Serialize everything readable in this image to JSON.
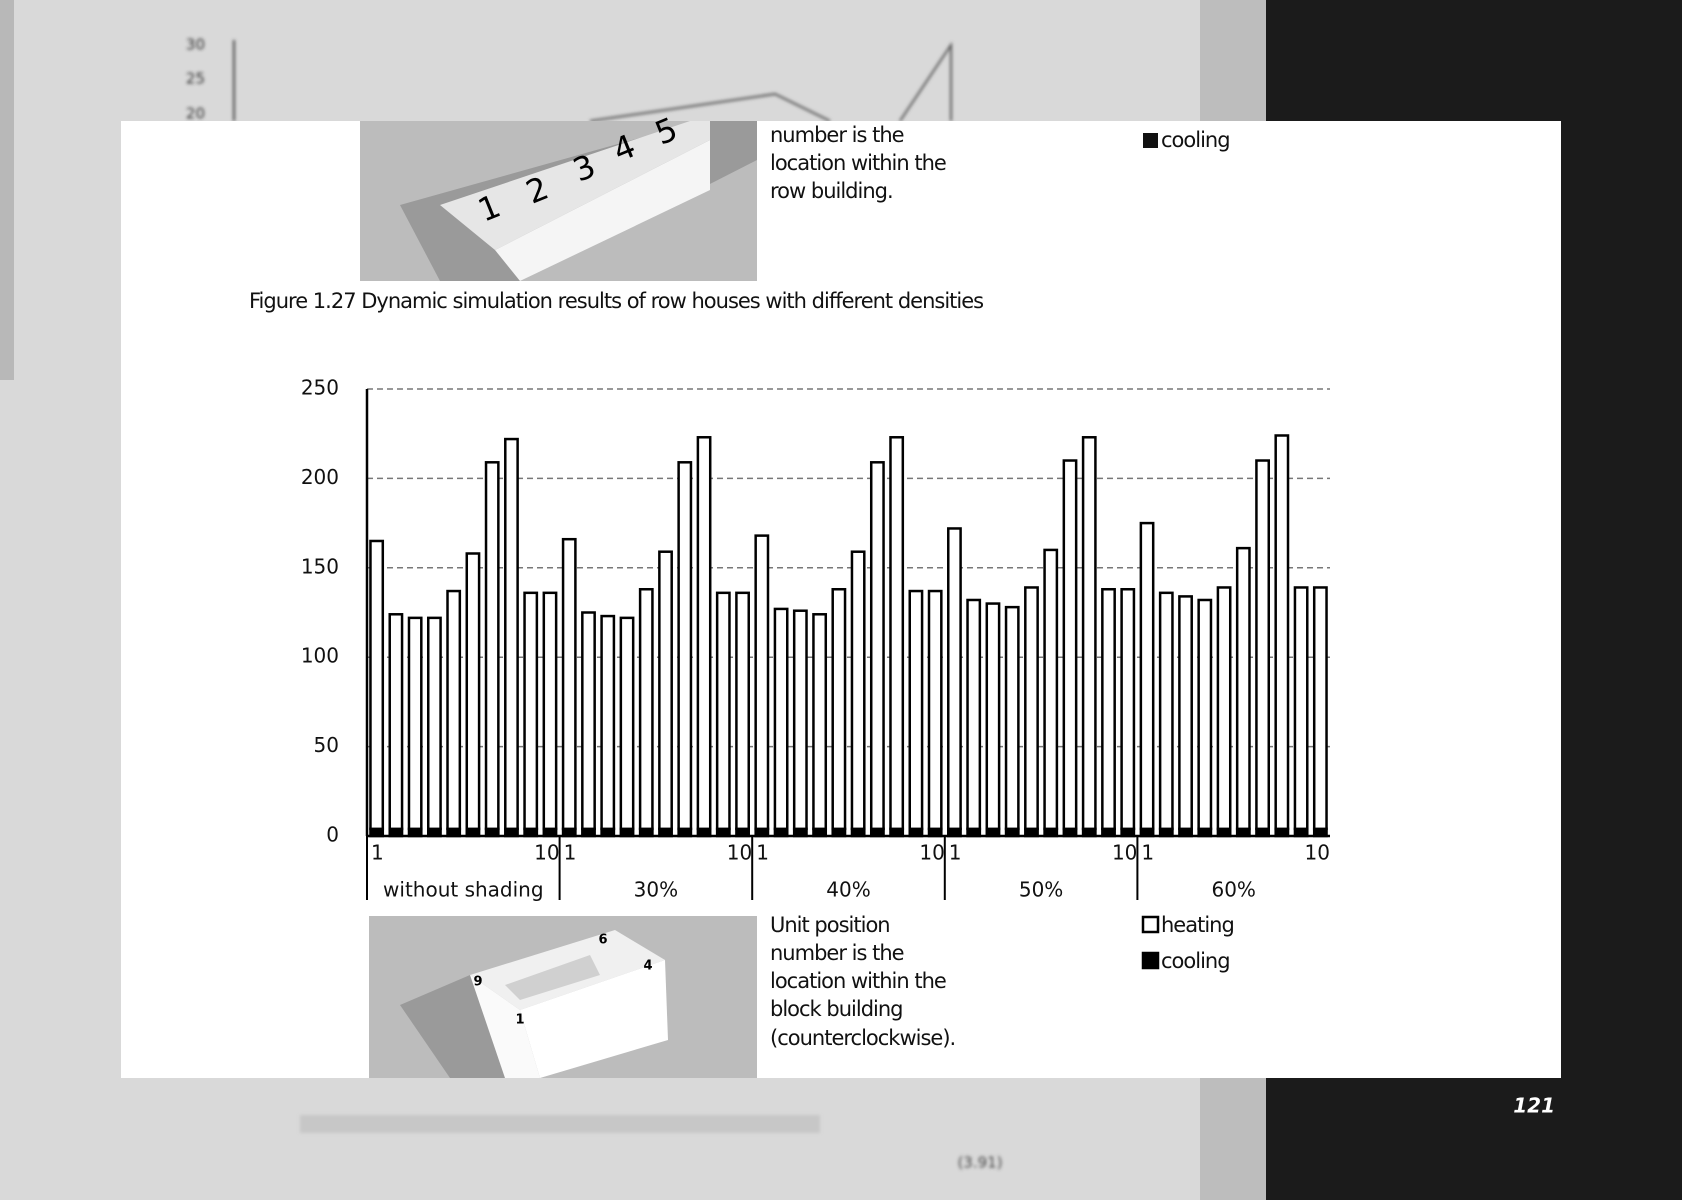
{
  "background": {
    "axis_ticks": [
      "30",
      "25",
      "20"
    ],
    "equation_number": "(3.91)",
    "page_number": "121"
  },
  "upper_figure": {
    "image_labels": [
      "1",
      "2",
      "3",
      "4",
      "5"
    ],
    "note_lines": [
      "number is the",
      "location within the",
      "row building."
    ],
    "legend": [
      "cooling"
    ],
    "caption": "Figure 1.27   Dynamic simulation results of row houses with different densities"
  },
  "chart_data": {
    "type": "bar",
    "stacked": true,
    "categories": [
      "1",
      null,
      null,
      null,
      null,
      null,
      null,
      null,
      null,
      "10",
      "1",
      null,
      null,
      null,
      null,
      null,
      null,
      null,
      null,
      "10",
      "1",
      null,
      null,
      null,
      null,
      null,
      null,
      null,
      null,
      "10",
      "1",
      null,
      null,
      null,
      null,
      null,
      null,
      null,
      null,
      "10",
      "1",
      null,
      null,
      null,
      null,
      null,
      null,
      null,
      null,
      "10"
    ],
    "groups": [
      "without shading",
      "30%",
      "40%",
      "50%",
      "60%"
    ],
    "series": [
      {
        "name": "cooling",
        "color": "#000000",
        "values": [
          4,
          4,
          4,
          4,
          4,
          4,
          4,
          4,
          4,
          4,
          4,
          4,
          4,
          4,
          4,
          4,
          4,
          4,
          4,
          4,
          4,
          4,
          4,
          4,
          4,
          4,
          4,
          4,
          4,
          4,
          4,
          4,
          4,
          4,
          4,
          4,
          4,
          4,
          4,
          4,
          4,
          4,
          4,
          4,
          4,
          4,
          4,
          4,
          4,
          4
        ]
      },
      {
        "name": "heating",
        "color": "#ffffff",
        "values": [
          161,
          120,
          118,
          118,
          133,
          154,
          205,
          218,
          132,
          132,
          162,
          121,
          119,
          118,
          134,
          155,
          205,
          219,
          132,
          132,
          164,
          123,
          122,
          120,
          134,
          155,
          205,
          219,
          133,
          133,
          168,
          128,
          126,
          124,
          135,
          156,
          206,
          219,
          134,
          134,
          171,
          132,
          130,
          128,
          135,
          157,
          206,
          220,
          135,
          135
        ]
      }
    ],
    "ylim": [
      0,
      250
    ],
    "yticks": [
      0,
      50,
      100,
      150,
      200,
      250
    ],
    "grid": true
  },
  "lower_figure": {
    "image_labels": [
      "9",
      "1",
      "6",
      "4"
    ],
    "note_lines": [
      "Unit position",
      "number is the",
      "location within the",
      "block building",
      "(counterclockwise)."
    ],
    "legend": [
      "heating",
      "cooling"
    ]
  }
}
